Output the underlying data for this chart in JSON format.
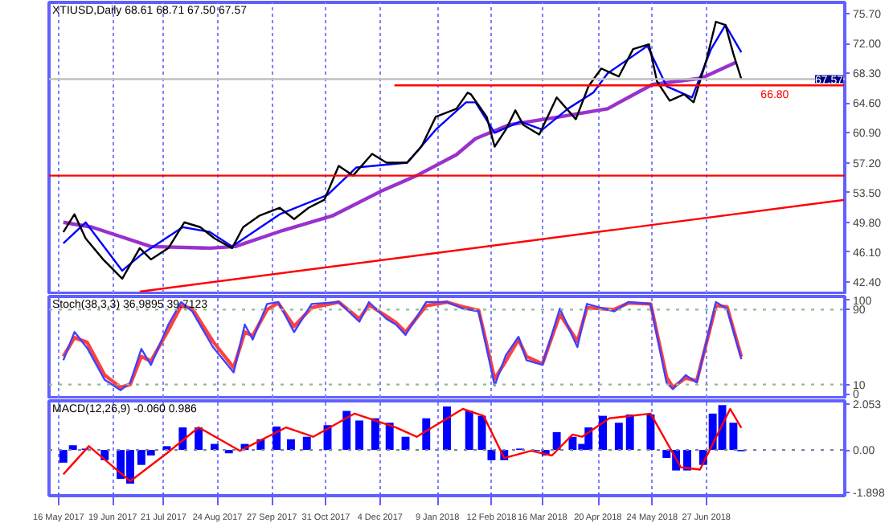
{
  "chart_data": [
    {
      "type": "line",
      "title": "XTIUSD,Daily 68.61 68.71 67.50 67.57",
      "xlim": [
        "2017-05-10",
        "2018-09-22"
      ],
      "ylim": [
        41.0,
        77.1
      ],
      "xticks": [
        {
          "value": "2017-05-16",
          "label": null
        },
        {
          "value": "2017-06-19",
          "label": null
        },
        {
          "value": "2017-07-21",
          "label": null
        },
        {
          "value": "2017-08-24",
          "label": null
        },
        {
          "value": "2017-09-27",
          "label": null
        },
        {
          "value": "2017-10-31",
          "label": null
        },
        {
          "value": "2017-12-04",
          "label": null
        },
        {
          "value": "2018-01-09",
          "label": null
        },
        {
          "value": "2018-02-12",
          "label": null
        },
        {
          "value": "2018-03-16",
          "label": null
        },
        {
          "value": "2018-04-20",
          "label": null
        },
        {
          "value": "2018-05-24",
          "label": null
        },
        {
          "value": "2018-06-27",
          "label": null
        }
      ],
      "yticks": [
        {
          "value": 42.4,
          "label": "42.40"
        },
        {
          "value": 46.1,
          "label": "46.10"
        },
        {
          "value": 49.8,
          "label": "49.80"
        },
        {
          "value": 53.5,
          "label": "53.50"
        },
        {
          "value": 57.2,
          "label": "57.20"
        },
        {
          "value": 60.9,
          "label": "60.90"
        },
        {
          "value": 64.6,
          "label": "64.60"
        },
        {
          "value": 68.3,
          "label": "68.30"
        },
        {
          "value": 72.0,
          "label": "72.00"
        },
        {
          "value": 75.7,
          "label": "75.70"
        }
      ],
      "grid": "x",
      "tick_labels": "y",
      "series": [
        {
          "color": "#9932cc",
          "x": [
            "2017-05-19",
            "2017-06-06",
            "2017-07-13",
            "2017-08-19",
            "2017-09-04",
            "2017-10-04",
            "2017-11-04",
            "2017-12-06",
            "2017-12-27",
            "2018-01-21",
            "2018-02-02",
            "2018-02-23",
            "2018-03-27",
            "2018-04-26",
            "2018-05-24",
            "2018-06-24",
            "2018-07-16"
          ],
          "values": [
            49.8,
            49.2,
            46.8,
            46.6,
            46.8,
            48.8,
            50.6,
            53.8,
            55.6,
            58.2,
            60.2,
            61.9,
            62.9,
            63.9,
            66.9,
            67.7,
            69.7
          ]
        },
        {
          "color": "#0000ff",
          "x": [
            "2017-05-19",
            "2017-06-02",
            "2017-06-25",
            "2017-07-07",
            "2017-08-02",
            "2017-08-19",
            "2017-09-02",
            "2017-10-02",
            "2017-11-01",
            "2017-11-19",
            "2017-12-21",
            "2018-01-08",
            "2018-01-27",
            "2018-02-02",
            "2018-02-14",
            "2018-03-02",
            "2018-03-16",
            "2018-04-01",
            "2018-04-17",
            "2018-04-26",
            "2018-05-21",
            "2018-06-02",
            "2018-06-18",
            "2018-06-30",
            "2018-07-09",
            "2018-07-19"
          ],
          "values": [
            47.2,
            49.8,
            43.8,
            45.8,
            49.2,
            48.6,
            46.8,
            50.8,
            53.2,
            56.6,
            57.2,
            61.3,
            64.7,
            64.7,
            60.9,
            62.3,
            61.3,
            63.9,
            65.9,
            68.3,
            71.7,
            66.7,
            65.3,
            71.3,
            74.3,
            70.9
          ]
        },
        {
          "color": "#000000",
          "x": [
            "2017-05-19",
            "2017-05-26",
            "2017-06-02",
            "2017-06-13",
            "2017-06-25",
            "2017-07-06",
            "2017-07-13",
            "2017-07-24",
            "2017-08-03",
            "2017-08-13",
            "2017-08-22",
            "2017-09-02",
            "2017-09-09",
            "2017-09-19",
            "2017-10-02",
            "2017-10-11",
            "2017-10-20",
            "2017-10-30",
            "2017-11-08",
            "2017-11-17",
            "2017-11-29",
            "2017-12-08",
            "2017-12-21",
            "2017-12-30",
            "2018-01-08",
            "2018-01-21",
            "2018-01-28",
            "2018-01-30",
            "2018-02-09",
            "2018-02-14",
            "2018-02-21",
            "2018-02-27",
            "2018-03-04",
            "2018-03-14",
            "2018-03-25",
            "2018-04-06",
            "2018-04-14",
            "2018-04-22",
            "2018-05-03",
            "2018-05-12",
            "2018-05-22",
            "2018-05-27",
            "2018-06-04",
            "2018-06-13",
            "2018-06-19",
            "2018-06-27",
            "2018-07-03",
            "2018-07-09",
            "2018-07-14",
            "2018-07-19"
          ],
          "values": [
            48.6,
            50.8,
            47.8,
            45.2,
            42.8,
            46.6,
            45.2,
            46.6,
            49.8,
            49.2,
            47.8,
            46.6,
            49.2,
            50.6,
            51.6,
            50.2,
            51.6,
            52.6,
            56.8,
            55.6,
            58.3,
            57.2,
            57.2,
            59.2,
            62.9,
            63.9,
            65.9,
            65.7,
            62.9,
            59.2,
            61.3,
            63.7,
            61.9,
            60.7,
            65.3,
            62.6,
            66.7,
            68.9,
            67.9,
            71.3,
            71.9,
            67.3,
            64.9,
            65.7,
            64.7,
            69.9,
            74.7,
            74.3,
            70.7,
            67.6
          ]
        },
        {
          "color": "#ff0000",
          "x": [
            "2017-12-13",
            "2018-09-22"
          ],
          "values": [
            66.8,
            66.8
          ]
        },
        {
          "color": "#ff0000",
          "x": [
            "2017-07-06",
            "2018-09-22"
          ],
          "values": [
            41.2,
            52.6
          ]
        }
      ],
      "ref_lines": [
        {
          "axis": "y",
          "value": 55.6,
          "color": "#ff0000"
        },
        {
          "axis": "y",
          "value": 67.57,
          "label": "67.57",
          "color": "#c0c0c0"
        }
      ],
      "annotations": [
        {
          "text": "66.80",
          "x": "2018-08-09",
          "y": 66.8
        }
      ]
    },
    {
      "type": "line",
      "title": "Stoch(38,3,3) 36.9895 39.7123",
      "xlim": [
        "2017-05-10",
        "2018-09-22"
      ],
      "ylim": [
        -4,
        104
      ],
      "xticks": [
        {
          "value": "2017-05-16",
          "label": null
        },
        {
          "value": "2017-06-19",
          "label": null
        },
        {
          "value": "2017-07-21",
          "label": null
        },
        {
          "value": "2017-08-24",
          "label": null
        },
        {
          "value": "2017-09-27",
          "label": null
        },
        {
          "value": "2017-10-31",
          "label": null
        },
        {
          "value": "2017-12-04",
          "label": null
        },
        {
          "value": "2018-01-09",
          "label": null
        },
        {
          "value": "2018-02-12",
          "label": null
        },
        {
          "value": "2018-03-16",
          "label": null
        },
        {
          "value": "2018-04-20",
          "label": null
        },
        {
          "value": "2018-05-24",
          "label": null
        },
        {
          "value": "2018-06-27",
          "label": null
        }
      ],
      "yticks": [
        0,
        10,
        90,
        100
      ],
      "grid": "x",
      "tick_labels": "y",
      "x": [
        "2017-05-19",
        "2017-05-26",
        "2017-06-03",
        "2017-06-14",
        "2017-06-24",
        "2017-06-30",
        "2017-07-07",
        "2017-07-13",
        "2017-07-24",
        "2017-08-01",
        "2017-08-08",
        "2017-08-21",
        "2017-09-03",
        "2017-09-10",
        "2017-09-15",
        "2017-09-24",
        "2017-10-01",
        "2017-10-11",
        "2017-10-22",
        "2017-11-08",
        "2017-11-21",
        "2017-11-27",
        "2017-12-08",
        "2017-12-14",
        "2017-12-20",
        "2018-01-02",
        "2018-01-15",
        "2018-01-25",
        "2018-02-04",
        "2018-02-14",
        "2018-02-21",
        "2018-03-01",
        "2018-03-06",
        "2018-03-16",
        "2018-03-27",
        "2018-04-07",
        "2018-04-13",
        "2018-04-30",
        "2018-05-09",
        "2018-05-23",
        "2018-06-02",
        "2018-06-06",
        "2018-06-14",
        "2018-06-21",
        "2018-07-03",
        "2018-07-10",
        "2018-07-19"
      ],
      "series": [
        {
          "color": "#ff4040",
          "values": [
            40,
            60,
            55,
            20,
            7,
            10,
            40,
            35,
            68,
            94,
            91,
            56,
            28,
            66,
            62,
            90,
            97,
            72,
            92,
            98,
            80,
            95,
            83,
            76,
            66,
            94,
            98,
            93,
            89,
            16,
            35,
            58,
            40,
            32,
            85,
            56,
            92,
            90,
            97,
            96,
            18,
            7,
            17,
            14,
            94,
            93,
            39.7
          ]
        },
        {
          "color": "#4040ff",
          "values": [
            36,
            66,
            49,
            15,
            4,
            12,
            48,
            31,
            74,
            98,
            88,
            50,
            23,
            74,
            58,
            96,
            98,
            66,
            96,
            98,
            77,
            98,
            80,
            74,
            63,
            98,
            98,
            91,
            88,
            9,
            41,
            61,
            36,
            31,
            91,
            50,
            96,
            88,
            98,
            96,
            12,
            5,
            20,
            12,
            98,
            91,
            37.0
          ]
        }
      ],
      "ref_lines": [
        {
          "axis": "y",
          "value": 90,
          "color": "#8fbc8f",
          "line_style": "dotted"
        },
        {
          "axis": "y",
          "value": 10,
          "color": "#8fbc8f",
          "line_style": "dotted"
        }
      ]
    },
    {
      "type": "bar",
      "title": "MACD(12,26,9) -0.060 0.986",
      "xlim": [
        "2017-05-10",
        "2018-09-22"
      ],
      "ylim": [
        -2.05,
        2.2
      ],
      "xticks": [
        {
          "value": "2017-05-16",
          "label": "16 May 2017"
        },
        {
          "value": "2017-06-19",
          "label": "19 Jun 2017"
        },
        {
          "value": "2017-07-21",
          "label": "21 Jul 2017"
        },
        {
          "value": "2017-08-24",
          "label": "24 Aug 2017"
        },
        {
          "value": "2017-09-27",
          "label": "27 Sep 2017"
        },
        {
          "value": "2017-10-31",
          "label": "31 Oct 2017"
        },
        {
          "value": "2017-12-04",
          "label": "4 Dec 2017"
        },
        {
          "value": "2018-01-09",
          "label": "9 Jan 2018"
        },
        {
          "value": "2018-02-12",
          "label": "12 Feb 2018"
        },
        {
          "value": "2018-03-16",
          "label": "16 Mar 2018"
        },
        {
          "value": "2018-04-20",
          "label": "20 Apr 2018"
        },
        {
          "value": "2018-05-24",
          "label": "24 May 2018"
        },
        {
          "value": "2018-06-27",
          "label": "27 Jun 2018"
        }
      ],
      "yticks": [
        -1.898,
        {
          "value": 0,
          "label": "0.00"
        },
        2.053
      ],
      "grid": "x",
      "series": [
        {
          "type": "bar",
          "color": "#0000ff",
          "x": [
            "2017-05-19",
            "2017-05-25",
            "2017-06-02",
            "2017-06-14",
            "2017-06-24",
            "2017-06-30",
            "2017-07-07",
            "2017-07-13",
            "2017-07-23",
            "2017-08-02",
            "2017-08-12",
            "2017-08-22",
            "2017-08-31",
            "2017-09-10",
            "2017-09-20",
            "2017-09-30",
            "2017-10-09",
            "2017-10-19",
            "2017-11-01",
            "2017-11-13",
            "2017-11-21",
            "2017-12-01",
            "2017-12-10",
            "2017-12-20",
            "2018-01-02",
            "2018-01-15",
            "2018-01-29",
            "2018-02-06",
            "2018-02-12",
            "2018-02-20",
            "2018-03-02",
            "2018-03-12",
            "2018-03-18",
            "2018-03-25",
            "2018-04-04",
            "2018-04-10",
            "2018-04-14",
            "2018-04-23",
            "2018-05-03",
            "2018-05-10",
            "2018-05-23",
            "2018-06-02",
            "2018-06-08",
            "2018-06-15",
            "2018-06-25",
            "2018-07-01",
            "2018-07-07",
            "2018-07-14",
            "2018-07-19"
          ],
          "values": [
            -0.57,
            0.21,
            0.06,
            -0.46,
            -1.3,
            -1.51,
            -0.67,
            -0.25,
            0.17,
            1.01,
            1.01,
            0.27,
            -0.15,
            0.27,
            0.48,
            1.05,
            0.48,
            0.59,
            1.11,
            1.75,
            1.32,
            1.42,
            1.22,
            0.59,
            1.42,
            1.95,
            1.75,
            1.53,
            -0.46,
            -0.46,
            0.06,
            -0.04,
            -0.25,
            0.8,
            0.59,
            0.27,
            1.01,
            1.53,
            1.22,
            1.59,
            1.59,
            -0.36,
            -0.92,
            -0.92,
            -0.67,
            1.63,
            2.01,
            1.22,
            -0.06
          ]
        },
        {
          "type": "line",
          "color": "#ff0000",
          "x": [
            "2017-05-19",
            "2017-06-04",
            "2017-06-30",
            "2017-07-23",
            "2017-08-12",
            "2017-09-07",
            "2017-10-06",
            "2017-10-23",
            "2017-11-18",
            "2017-12-14",
            "2017-12-27",
            "2018-01-25",
            "2018-02-07",
            "2018-02-20",
            "2018-03-09",
            "2018-03-22",
            "2018-04-04",
            "2018-04-10",
            "2018-04-27",
            "2018-05-23",
            "2018-06-11",
            "2018-06-23",
            "2018-07-12",
            "2018-07-19"
          ],
          "values": [
            -1.09,
            0.17,
            -1.4,
            -0.15,
            1.01,
            -0.04,
            1.01,
            0.59,
            1.63,
            1.01,
            0.59,
            1.84,
            1.53,
            -0.36,
            -0.04,
            -0.25,
            0.69,
            0.59,
            1.42,
            1.63,
            -0.78,
            -0.88,
            1.84,
            0.99
          ]
        }
      ],
      "ref_lines": [
        {
          "axis": "y",
          "value": 0,
          "color": "#8080a0",
          "line_style": "dotted"
        }
      ]
    }
  ]
}
